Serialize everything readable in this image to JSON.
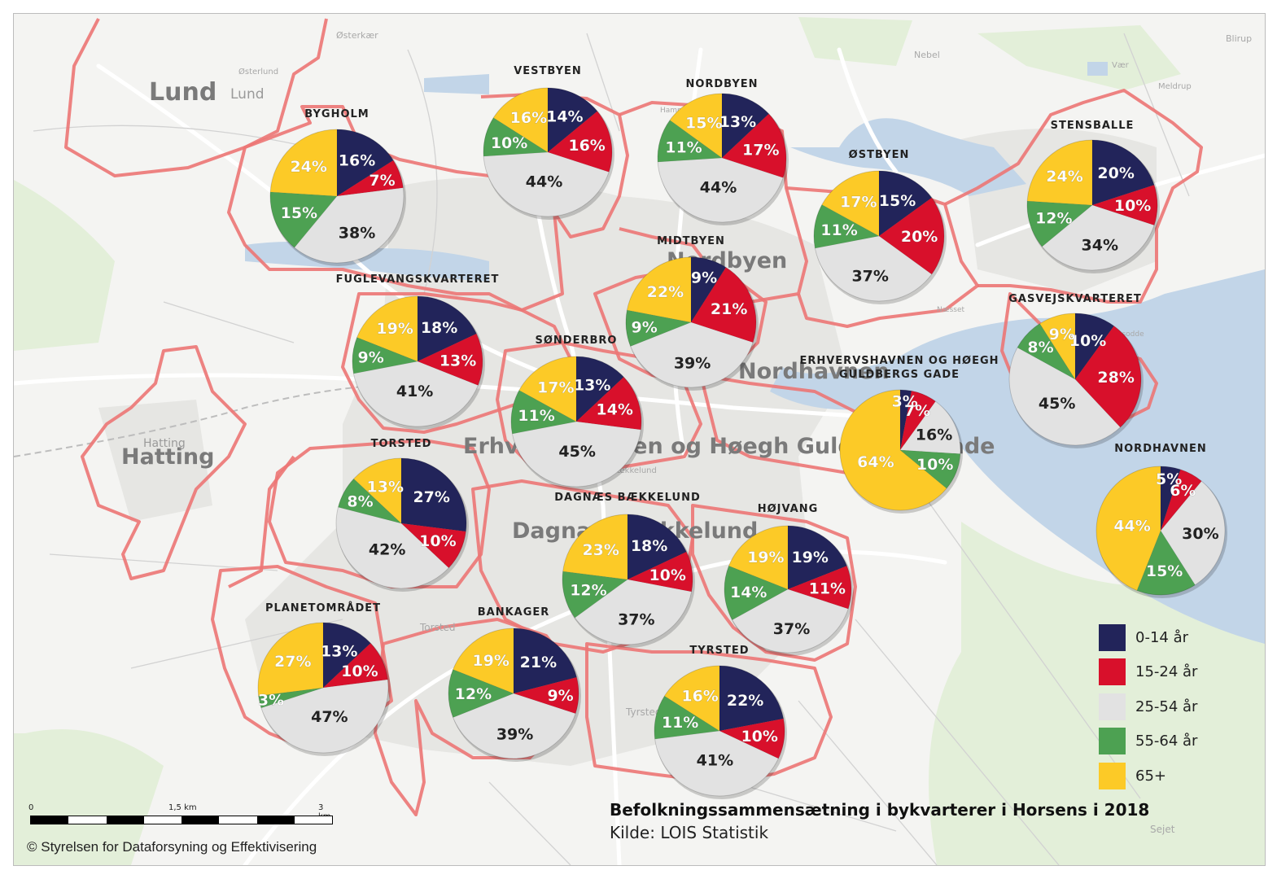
{
  "title": "Befolkningssammensætning i bykvarterer i Horsens i 2018",
  "source": "Kilde: LOIS Statistik",
  "copyright": "© Styrelsen for Dataforsyning og Effektivisering",
  "scale": {
    "labels": [
      "0",
      "1,5 km",
      "3 km"
    ]
  },
  "colors": {
    "0-14 år": "#22245a",
    "15-24 år": "#d8102b",
    "25-54 år": "#e2e2e2",
    "55-64 år": "#4da152",
    "65+": "#fcca27",
    "district_border": "#ec7674",
    "water": "#c2d5e8",
    "land": "#f4f4f2"
  },
  "legend": [
    {
      "label": "0-14 år",
      "color": "#22245a"
    },
    {
      "label": "15-24 år",
      "color": "#d8102b"
    },
    {
      "label": "25-54 år",
      "color": "#e2e2e2"
    },
    {
      "label": "55-64 år",
      "color": "#4da152"
    },
    {
      "label": "65+",
      "color": "#fcca27"
    }
  ],
  "place_labels": [
    {
      "text": "Lund",
      "style": "large"
    },
    {
      "text": "Lund",
      "style": "small"
    },
    {
      "text": "Hatting",
      "style": "large"
    },
    {
      "text": "Hatting",
      "style": "small"
    },
    {
      "text": "Østerkær",
      "style": "xsmall"
    },
    {
      "text": "Østerlund",
      "style": "xsmall"
    },
    {
      "text": "Nebel",
      "style": "xsmall"
    },
    {
      "text": "Blirup",
      "style": "xsmall"
    },
    {
      "text": "Vær",
      "style": "xsmall"
    },
    {
      "text": "Meldrup",
      "style": "xsmall"
    },
    {
      "text": "Sejet",
      "style": "xsmall"
    },
    {
      "text": "Hammer",
      "style": "xsmall"
    },
    {
      "text": "Næsset",
      "style": "xsmall"
    },
    {
      "text": "Husodde",
      "style": "xsmall"
    },
    {
      "text": "Torsted",
      "style": "xsmall"
    },
    {
      "text": "Tyrsted",
      "style": "xsmall"
    },
    {
      "text": "Bækkelund",
      "style": "xsmall"
    },
    {
      "text": "Nordbyen",
      "style": "medium"
    },
    {
      "text": "Nordhavnen",
      "style": "medium"
    },
    {
      "text": "Erhvervshavnen og Høegh Guldbergs Gade",
      "style": "medium"
    },
    {
      "text": "Dagnæs Bækkelund",
      "style": "medium"
    }
  ],
  "chart_data": {
    "type": "pie",
    "title": "Befolkningssammensætning i bykvarterer i Horsens i 2018",
    "categories": [
      "0-14 år",
      "15-24 år",
      "25-54 år",
      "55-64 år",
      "65+"
    ],
    "pies": [
      {
        "name": "VESTBYEN",
        "values": [
          14,
          16,
          44,
          10,
          16
        ]
      },
      {
        "name": "NORDBYEN",
        "values": [
          13,
          17,
          44,
          11,
          15
        ]
      },
      {
        "name": "BYGHOLM",
        "values": [
          16,
          7,
          38,
          15,
          24
        ]
      },
      {
        "name": "ØSTBYEN",
        "values": [
          15,
          20,
          37,
          11,
          17
        ]
      },
      {
        "name": "STENSBALLE",
        "values": [
          20,
          10,
          34,
          12,
          24
        ]
      },
      {
        "name": "MIDTBYEN",
        "values": [
          9,
          21,
          39,
          9,
          22
        ]
      },
      {
        "name": "FUGLEVANGSKVARTERET",
        "values": [
          18,
          13,
          41,
          9,
          19
        ]
      },
      {
        "name": "GASVEJSKVARTERET",
        "values": [
          10,
          28,
          45,
          8,
          9
        ]
      },
      {
        "name": "SØNDERBRO",
        "values": [
          13,
          14,
          45,
          11,
          17
        ]
      },
      {
        "name": "ERHVERVSHAVNEN OG HØEGH GULDBERGS GADE",
        "values": [
          3,
          7,
          16,
          10,
          64
        ]
      },
      {
        "name": "TORSTED",
        "values": [
          27,
          10,
          42,
          8,
          13
        ]
      },
      {
        "name": "NORDHAVNEN",
        "values": [
          5,
          6,
          30,
          15,
          44
        ]
      },
      {
        "name": "DAGNÆS BÆKKELUND",
        "values": [
          18,
          10,
          37,
          12,
          23
        ]
      },
      {
        "name": "HØJVANG",
        "values": [
          19,
          11,
          37,
          14,
          19
        ]
      },
      {
        "name": "PLANETOMRÅDET",
        "values": [
          13,
          10,
          47,
          3,
          27
        ]
      },
      {
        "name": "BANKAGER",
        "values": [
          21,
          9,
          39,
          12,
          19
        ]
      },
      {
        "name": "TYRSTED",
        "values": [
          22,
          10,
          41,
          11,
          16
        ]
      }
    ]
  }
}
